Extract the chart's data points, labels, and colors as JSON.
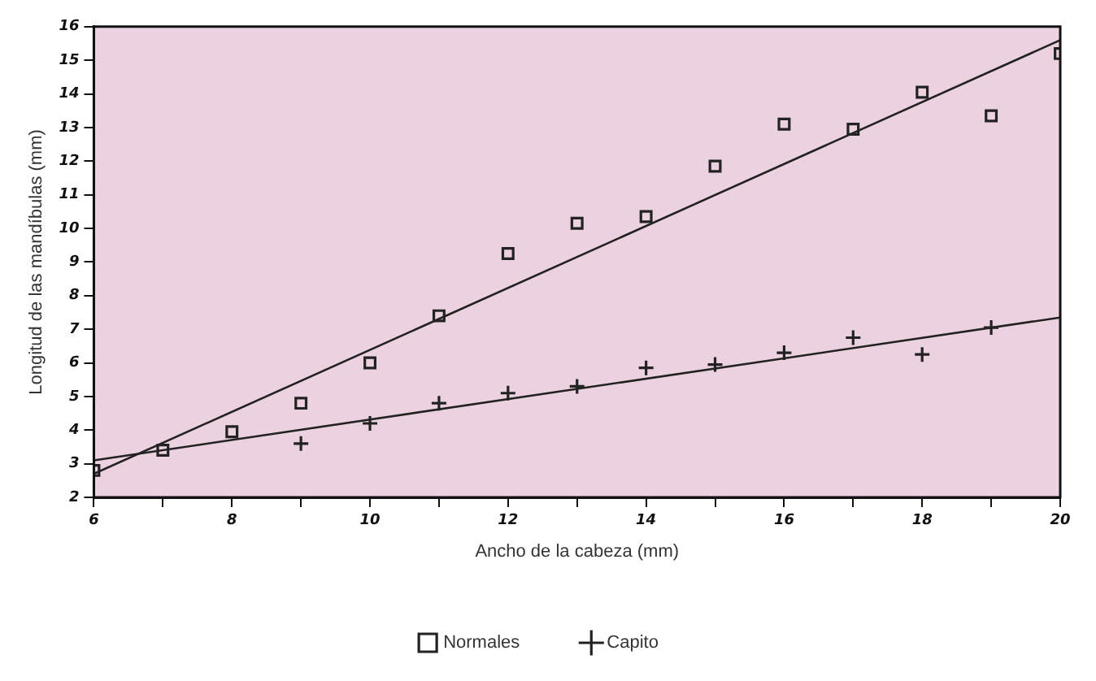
{
  "chart_data": {
    "type": "scatter",
    "xlabel": "Ancho de la cabeza (mm)",
    "ylabel": "Longitud de las mandíbulas (mm)",
    "xlim": [
      6,
      20
    ],
    "xticks": [
      6,
      {
        "value": 7,
        "label": null
      },
      8,
      {
        "value": 9,
        "label": null
      },
      10,
      {
        "value": 11,
        "label": null
      },
      12,
      {
        "value": 13,
        "label": null
      },
      14,
      {
        "value": 15,
        "label": null
      },
      16,
      {
        "value": 17,
        "label": null
      },
      18,
      {
        "value": 19,
        "label": null
      },
      20
    ],
    "ylim": [
      2,
      16
    ],
    "yticks": [
      2,
      3,
      4,
      5,
      6,
      7,
      8,
      9,
      10,
      11,
      12,
      13,
      14,
      15,
      16
    ],
    "grid": false,
    "legend": "bottom",
    "series": [
      {
        "name": "Normales",
        "marker": "square",
        "color": "#222222",
        "x": [
          6,
          7,
          8,
          9,
          10,
          11,
          12,
          13,
          14,
          15,
          16,
          17,
          18,
          19,
          20
        ],
        "values": [
          2.8,
          3.4,
          3.95,
          4.8,
          6.0,
          7.4,
          9.25,
          10.15,
          10.35,
          11.85,
          13.1,
          12.95,
          14.05,
          13.35,
          15.2
        ]
      },
      {
        "name": "Capito",
        "marker": "cross",
        "color": "#222222",
        "x": [
          9,
          10,
          11,
          12,
          13,
          14,
          15,
          16,
          17,
          18,
          19
        ],
        "values": [
          3.6,
          4.2,
          4.8,
          5.1,
          5.3,
          5.85,
          5.95,
          6.3,
          6.75,
          6.25,
          7.05
        ]
      },
      {
        "type": "line",
        "marker": "none",
        "color": "#222222",
        "x": [
          6,
          20
        ],
        "values": [
          2.7,
          15.6
        ]
      },
      {
        "type": "line",
        "marker": "none",
        "color": "#222222",
        "x": [
          6,
          20
        ],
        "values": [
          3.1,
          7.35
        ]
      }
    ]
  }
}
